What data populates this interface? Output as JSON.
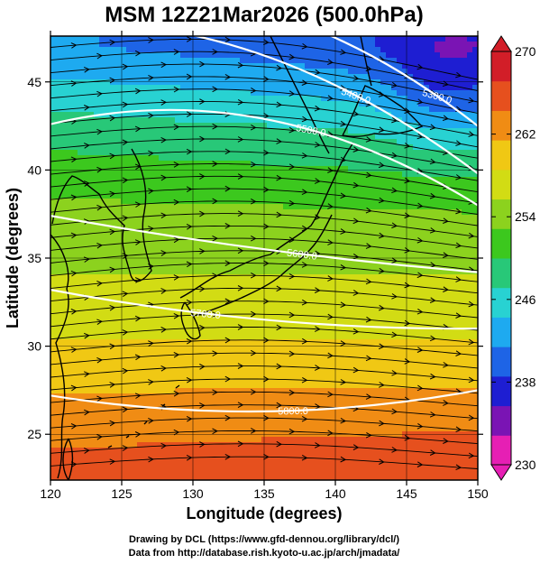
{
  "chart_data": {
    "type": "heatmap",
    "title": "MSM 12Z21Mar2026 (500.0hPa)",
    "xlabel": "Longitude (degrees)",
    "ylabel": "Latitude  (degrees)",
    "xlim": [
      120,
      150
    ],
    "ylim": [
      22.4,
      47.6
    ],
    "x_ticks": [
      120,
      125,
      130,
      135,
      140,
      145,
      150
    ],
    "y_ticks": [
      25,
      30,
      35,
      40,
      45
    ],
    "colorbar": {
      "range": [
        230,
        270
      ],
      "tick_labels": [
        270,
        262,
        254,
        246,
        238,
        230
      ],
      "extend": "both",
      "colors": [
        "#e61fb4",
        "#7a14b4",
        "#1e1ed2",
        "#1e64e6",
        "#1eaaf0",
        "#28d2d2",
        "#28c878",
        "#3cc81e",
        "#8cd21e",
        "#d2dc14",
        "#f0c814",
        "#f08c14",
        "#e6501e",
        "#d21e28"
      ]
    },
    "contours": [
      {
        "label": "5400.0",
        "lat_at_120": 48.3,
        "lat_at_135": 46.5,
        "lat_at_150": 39.8
      },
      {
        "label": "5300.0",
        "lat_at_120": 49.5,
        "lat_at_135": 49.0,
        "lat_at_150": 42.5
      },
      {
        "label": "5500.0",
        "lat_at_120": 42.6,
        "lat_at_135": 42.9,
        "lat_at_150": 38.0
      },
      {
        "label": "5600.0",
        "lat_at_120": 37.4,
        "lat_at_135": 35.5,
        "lat_at_150": 34.2
      },
      {
        "label": "5700.0",
        "lat_at_120": 33.2,
        "lat_at_135": 31.5,
        "lat_at_150": 31.0
      },
      {
        "label": "5800.0",
        "lat_at_120": 27.2,
        "lat_at_135": 26.3,
        "lat_at_150": 27.5
      }
    ],
    "field_description_values": [
      {
        "lat": 47,
        "value": 240
      },
      {
        "lat": 42,
        "value": 248
      },
      {
        "lat": 37,
        "value": 254
      },
      {
        "lat": 32,
        "value": 257
      },
      {
        "lat": 27,
        "value": 262
      },
      {
        "lat": 23,
        "value": 266
      }
    ],
    "grid": true
  },
  "credits": {
    "line1": "Drawing by DCL (https://www.gfd-dennou.org/library/dcl/)",
    "line2": "Data from http://database.rish.kyoto-u.ac.jp/arch/jmadata/"
  }
}
